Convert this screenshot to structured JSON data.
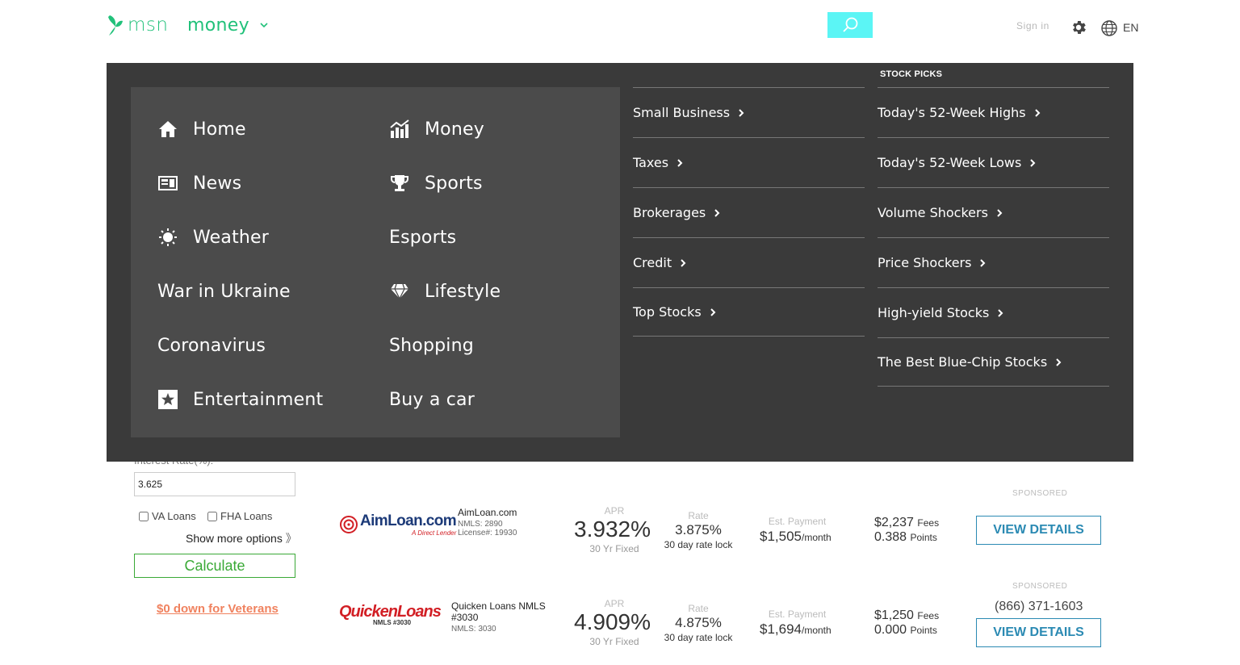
{
  "header": {
    "logo_text": "msn",
    "section": "money",
    "sign_in": "Sign in",
    "lang": "EN",
    "colors": {
      "brand": "#21c17a",
      "search_bg": "#5bf5f5"
    }
  },
  "nav": {
    "left": [
      {
        "label": "Home",
        "icon": "home-icon"
      },
      {
        "label": "News",
        "icon": "news-icon"
      },
      {
        "label": "Weather",
        "icon": "weather-icon"
      },
      {
        "label": "War in Ukraine",
        "icon": ""
      },
      {
        "label": "Coronavirus",
        "icon": ""
      },
      {
        "label": "Entertainment",
        "icon": "star-icon"
      }
    ],
    "right": [
      {
        "label": "Money",
        "icon": "chart-icon"
      },
      {
        "label": "Sports",
        "icon": "trophy-icon"
      },
      {
        "label": "Esports",
        "icon": ""
      },
      {
        "label": "Lifestyle",
        "icon": "diamond-icon"
      },
      {
        "label": "Shopping",
        "icon": ""
      },
      {
        "label": "Buy a car",
        "icon": ""
      }
    ]
  },
  "money_links": [
    "Small Business",
    "Taxes",
    "Brokerages",
    "Credit",
    "Top Stocks"
  ],
  "stock_picks": {
    "title": "STOCK PICKS",
    "links": [
      "Today's 52-Week Highs",
      "Today's 52-Week Lows",
      "Volume Shockers",
      "Price Shockers",
      "High-yield Stocks",
      "The Best Blue-Chip Stocks"
    ]
  },
  "calculator": {
    "label": "Interest Rate(%):",
    "rate_value": "3.625",
    "va_label": "VA Loans",
    "fha_label": "FHA Loans",
    "more_options": "Show more options",
    "calculate": "Calculate",
    "veterans_link": "$0 down for Veterans"
  },
  "offers": [
    {
      "logo_main": "AimLoan.com",
      "logo_sub": "A Direct Lender",
      "name": "AimLoan.com",
      "nmls": "NMLS: 2890",
      "license": "License#: 19930",
      "apr_label": "APR",
      "apr": "3.932%",
      "term": "30 Yr Fixed",
      "rate_label": "Rate",
      "rate": "3.875%",
      "lock": "30 day rate lock",
      "pay_label": "Est. Payment",
      "payment": "$1,505",
      "per_month": "/month",
      "fees": "$2,237",
      "fees_label": "Fees",
      "points": "0.388",
      "points_label": "Points",
      "sponsored": "SPONSORED",
      "phone": "",
      "cta": "VIEW DETAILS"
    },
    {
      "logo_main": "QuickenLoans",
      "logo_sub": "NMLS #3030",
      "name": "Quicken Loans NMLS #3030",
      "nmls": "NMLS: 3030",
      "license": "",
      "apr_label": "APR",
      "apr": "4.909%",
      "term": "30 Yr Fixed",
      "rate_label": "Rate",
      "rate": "4.875%",
      "lock": "30 day rate lock",
      "pay_label": "Est. Payment",
      "payment": "$1,694",
      "per_month": "/month",
      "fees": "$1,250",
      "fees_label": "Fees",
      "points": "0.000",
      "points_label": "Points",
      "sponsored": "SPONSORED",
      "phone": "(866) 371-1603",
      "cta": "VIEW DETAILS"
    }
  ]
}
